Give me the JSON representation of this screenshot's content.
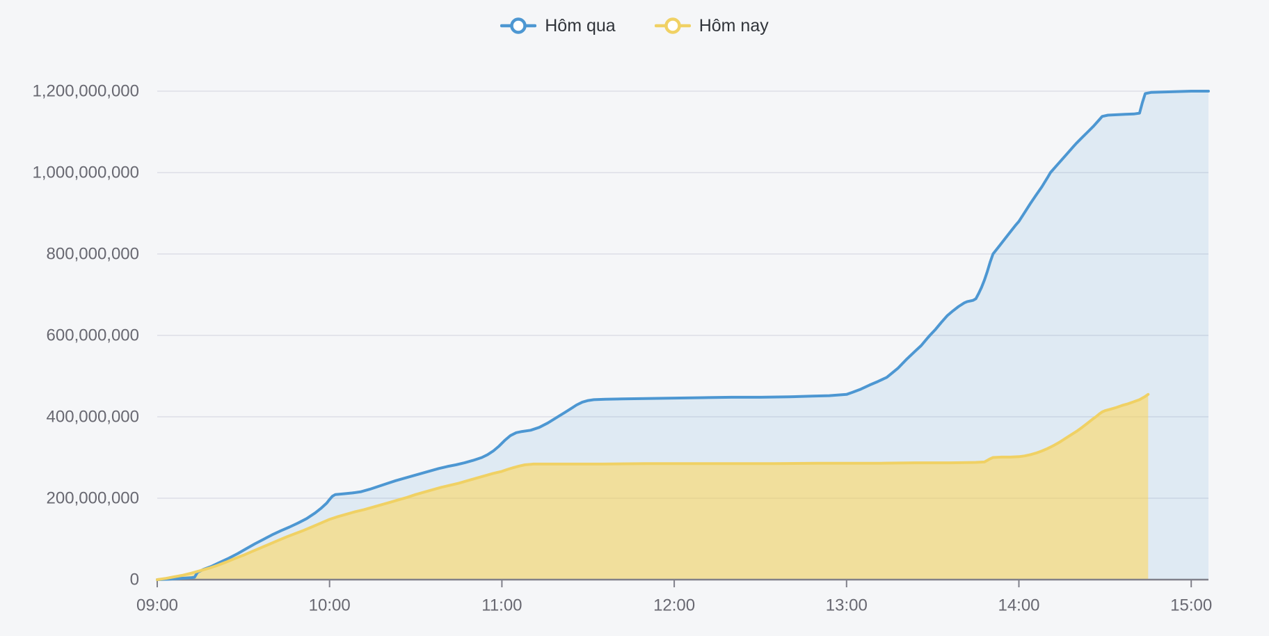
{
  "legend": {
    "items": [
      {
        "label": "Hôm qua",
        "color": "#4d97d2"
      },
      {
        "label": "Hôm nay",
        "color": "#f0d164"
      }
    ]
  },
  "colors": {
    "background": "#f5f6f8",
    "grid": "#e3e4eb",
    "axis": "#80808a",
    "axis_text": "#686871",
    "legend_text": "#30343a",
    "blue_line": "#4d97d2",
    "blue_fill": "rgba(77,151,210,0.13)",
    "yellow_line": "#f0d164",
    "yellow_fill": "rgba(255,214,84,0.55)"
  },
  "chart_data": {
    "type": "area",
    "title": "",
    "xlabel": "",
    "ylabel": "",
    "x_unit": "minutes_after_09:00",
    "y_unit": "millions",
    "grid": true,
    "legend_position": "top-center",
    "y_axis": {
      "min": 0,
      "max": 1200000000,
      "ticks": [
        {
          "value": 0,
          "label": "0"
        },
        {
          "value": 200,
          "label": "200,000,000"
        },
        {
          "value": 400,
          "label": "400,000,000"
        },
        {
          "value": 600,
          "label": "600,000,000"
        },
        {
          "value": 800,
          "label": "800,000,000"
        },
        {
          "value": 1000,
          "label": "1,000,000,000"
        },
        {
          "value": 1200,
          "label": "1,200,000,000"
        }
      ]
    },
    "x_axis": {
      "ticks": [
        {
          "minute": 0,
          "label": "09:00"
        },
        {
          "minute": 60,
          "label": "10:00"
        },
        {
          "minute": 120,
          "label": "11:00"
        },
        {
          "minute": 180,
          "label": "12:00"
        },
        {
          "minute": 240,
          "label": "13:00"
        },
        {
          "minute": 300,
          "label": "14:00"
        },
        {
          "minute": 360,
          "label": "15:00"
        }
      ],
      "end_minute": 366
    },
    "series": [
      {
        "name": "Hôm qua",
        "color": "#4d97d2",
        "fill": "rgba(77,151,210,0.13)",
        "drop_to_zero_at_end": false,
        "points": [
          [
            0,
            0
          ],
          [
            4,
            1
          ],
          [
            8,
            3
          ],
          [
            12,
            5
          ],
          [
            13,
            6
          ],
          [
            14,
            18
          ],
          [
            16,
            25
          ],
          [
            19,
            33
          ],
          [
            22,
            43
          ],
          [
            25,
            53
          ],
          [
            28,
            64
          ],
          [
            31,
            76
          ],
          [
            34,
            88
          ],
          [
            37,
            99
          ],
          [
            40,
            110
          ],
          [
            43,
            120
          ],
          [
            46,
            129
          ],
          [
            49,
            139
          ],
          [
            52,
            150
          ],
          [
            55,
            164
          ],
          [
            57,
            175
          ],
          [
            59,
            188
          ],
          [
            60,
            197
          ],
          [
            61,
            205
          ],
          [
            62,
            209
          ],
          [
            65,
            211
          ],
          [
            68,
            213
          ],
          [
            71,
            216
          ],
          [
            74,
            222
          ],
          [
            77,
            229
          ],
          [
            80,
            236
          ],
          [
            83,
            243
          ],
          [
            86,
            249
          ],
          [
            89,
            255
          ],
          [
            92,
            261
          ],
          [
            95,
            267
          ],
          [
            98,
            273
          ],
          [
            101,
            278
          ],
          [
            104,
            282
          ],
          [
            107,
            287
          ],
          [
            110,
            293
          ],
          [
            113,
            300
          ],
          [
            115,
            307
          ],
          [
            117,
            316
          ],
          [
            119,
            328
          ],
          [
            121,
            342
          ],
          [
            123,
            354
          ],
          [
            125,
            361
          ],
          [
            127,
            364
          ],
          [
            130,
            367
          ],
          [
            133,
            374
          ],
          [
            136,
            385
          ],
          [
            139,
            398
          ],
          [
            142,
            411
          ],
          [
            144,
            420
          ],
          [
            146,
            429
          ],
          [
            148,
            436
          ],
          [
            150,
            440
          ],
          [
            152,
            442
          ],
          [
            156,
            443
          ],
          [
            162,
            444
          ],
          [
            170,
            445
          ],
          [
            180,
            446
          ],
          [
            190,
            447
          ],
          [
            200,
            448
          ],
          [
            210,
            448
          ],
          [
            220,
            449
          ],
          [
            228,
            451
          ],
          [
            234,
            452
          ],
          [
            240,
            455
          ],
          [
            242,
            460
          ],
          [
            245,
            468
          ],
          [
            248,
            478
          ],
          [
            251,
            487
          ],
          [
            254,
            497
          ],
          [
            258,
            520
          ],
          [
            261,
            542
          ],
          [
            264,
            562
          ],
          [
            266,
            575
          ],
          [
            268,
            592
          ],
          [
            269,
            600
          ],
          [
            271,
            615
          ],
          [
            273,
            632
          ],
          [
            275,
            648
          ],
          [
            277,
            660
          ],
          [
            279,
            671
          ],
          [
            281,
            680
          ],
          [
            282,
            683
          ],
          [
            284,
            686
          ],
          [
            285,
            690
          ],
          [
            286,
            703
          ],
          [
            287,
            718
          ],
          [
            288,
            736
          ],
          [
            289,
            757
          ],
          [
            290,
            780
          ],
          [
            291,
            800
          ],
          [
            293,
            818
          ],
          [
            295,
            836
          ],
          [
            297,
            854
          ],
          [
            299,
            872
          ],
          [
            300,
            880
          ],
          [
            302,
            902
          ],
          [
            304,
            924
          ],
          [
            306,
            945
          ],
          [
            308,
            965
          ],
          [
            310,
            988
          ],
          [
            311,
            1000
          ],
          [
            313,
            1016
          ],
          [
            315,
            1032
          ],
          [
            317,
            1048
          ],
          [
            319,
            1064
          ],
          [
            320,
            1072
          ],
          [
            322,
            1086
          ],
          [
            324,
            1100
          ],
          [
            326,
            1114
          ],
          [
            328,
            1130
          ],
          [
            329,
            1138
          ],
          [
            331,
            1141
          ],
          [
            334,
            1142
          ],
          [
            337,
            1143
          ],
          [
            340,
            1144
          ],
          [
            342,
            1146
          ],
          [
            343,
            1172
          ],
          [
            344,
            1194
          ],
          [
            346,
            1197
          ],
          [
            350,
            1198
          ],
          [
            355,
            1199
          ],
          [
            360,
            1200
          ],
          [
            366,
            1200
          ]
        ]
      },
      {
        "name": "Hôm nay",
        "color": "#f0d164",
        "fill": "rgba(255,214,84,0.55)",
        "drop_to_zero_at_end": true,
        "points": [
          [
            0,
            0
          ],
          [
            3,
            3
          ],
          [
            6,
            7
          ],
          [
            9,
            11
          ],
          [
            12,
            16
          ],
          [
            15,
            22
          ],
          [
            18,
            28
          ],
          [
            21,
            35
          ],
          [
            24,
            43
          ],
          [
            27,
            52
          ],
          [
            30,
            60
          ],
          [
            33,
            69
          ],
          [
            36,
            78
          ],
          [
            39,
            87
          ],
          [
            42,
            96
          ],
          [
            45,
            105
          ],
          [
            48,
            113
          ],
          [
            51,
            121
          ],
          [
            54,
            130
          ],
          [
            57,
            139
          ],
          [
            60,
            148
          ],
          [
            63,
            155
          ],
          [
            66,
            161
          ],
          [
            69,
            167
          ],
          [
            72,
            172
          ],
          [
            75,
            178
          ],
          [
            78,
            184
          ],
          [
            81,
            190
          ],
          [
            84,
            196
          ],
          [
            87,
            202
          ],
          [
            90,
            209
          ],
          [
            93,
            215
          ],
          [
            96,
            221
          ],
          [
            99,
            227
          ],
          [
            102,
            232
          ],
          [
            105,
            237
          ],
          [
            108,
            243
          ],
          [
            111,
            249
          ],
          [
            114,
            255
          ],
          [
            117,
            261
          ],
          [
            120,
            266
          ],
          [
            122,
            271
          ],
          [
            124,
            275
          ],
          [
            126,
            279
          ],
          [
            128,
            282
          ],
          [
            131,
            284
          ],
          [
            140,
            284
          ],
          [
            155,
            284
          ],
          [
            170,
            285
          ],
          [
            185,
            285
          ],
          [
            200,
            285
          ],
          [
            215,
            285
          ],
          [
            230,
            286
          ],
          [
            240,
            286
          ],
          [
            252,
            286
          ],
          [
            264,
            287
          ],
          [
            276,
            287
          ],
          [
            285,
            288
          ],
          [
            288,
            289
          ],
          [
            289,
            293
          ],
          [
            290,
            297
          ],
          [
            291,
            300
          ],
          [
            294,
            301
          ],
          [
            297,
            301
          ],
          [
            300,
            302
          ],
          [
            302,
            304
          ],
          [
            304,
            307
          ],
          [
            306,
            311
          ],
          [
            308,
            316
          ],
          [
            310,
            322
          ],
          [
            312,
            329
          ],
          [
            314,
            337
          ],
          [
            316,
            346
          ],
          [
            318,
            355
          ],
          [
            320,
            364
          ],
          [
            322,
            374
          ],
          [
            324,
            385
          ],
          [
            326,
            396
          ],
          [
            327,
            401
          ],
          [
            328,
            407
          ],
          [
            329,
            412
          ],
          [
            330,
            415
          ],
          [
            332,
            419
          ],
          [
            334,
            423
          ],
          [
            336,
            428
          ],
          [
            338,
            432
          ],
          [
            340,
            437
          ],
          [
            342,
            442
          ],
          [
            344,
            450
          ],
          [
            345,
            455
          ]
        ]
      }
    ]
  }
}
